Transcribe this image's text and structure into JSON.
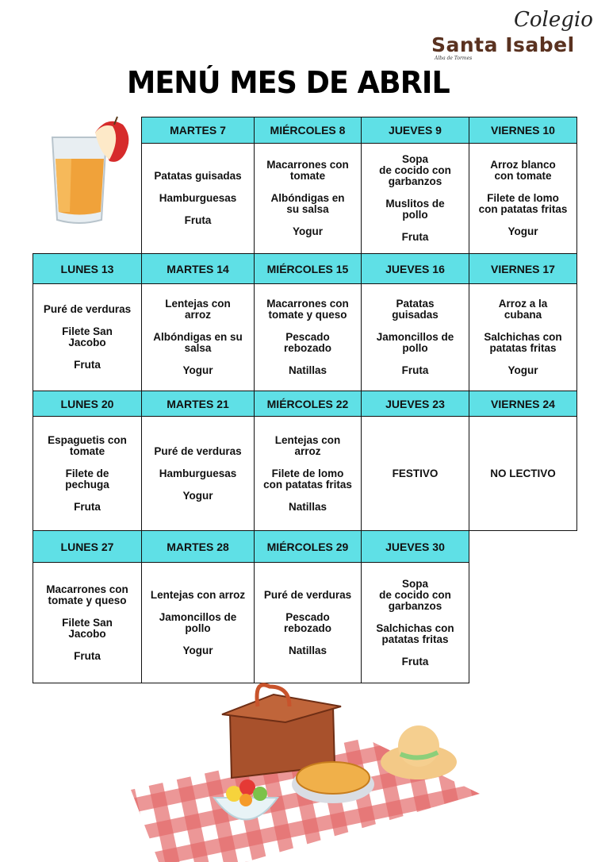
{
  "logo": {
    "colegio": "Colegio",
    "name": "Santa Isabel",
    "sub": "Alba de Tormes"
  },
  "title": "MENÚ MES DE ABRIL",
  "colors": {
    "header_bg": "#5fe0e6",
    "border": "#111111"
  },
  "weeks": [
    {
      "days": [
        null,
        {
          "header": "MARTES 7",
          "items": [
            "Patatas guisadas",
            "Hamburguesas",
            "Fruta"
          ]
        },
        {
          "header": "MIÉRCOLES 8",
          "items": [
            "Macarrones con\ntomate",
            "Albóndigas en\nsu salsa",
            "Yogur"
          ]
        },
        {
          "header": "JUEVES  9",
          "items": [
            "Sopa\nde cocido con\ngarbanzos",
            "Muslitos de\npollo",
            "Fruta"
          ]
        },
        {
          "header": "VIERNES 10",
          "items": [
            "Arroz blanco\ncon tomate",
            "Filete de lomo\ncon patatas fritas",
            "Yogur"
          ]
        }
      ]
    },
    {
      "days": [
        {
          "header": "LUNES 13",
          "items": [
            "Puré de verduras",
            "Filete San\nJacobo",
            "Fruta"
          ]
        },
        {
          "header": "MARTES 14",
          "items": [
            "Lentejas con\narroz",
            "Albóndigas en su\nsalsa",
            "Yogur"
          ]
        },
        {
          "header": "MIÉRCOLES 15",
          "items": [
            "Macarrones con\ntomate y queso",
            "Pescado\nrebozado",
            "Natillas"
          ]
        },
        {
          "header": "JUEVES 16",
          "items": [
            "Patatas\nguisadas",
            "Jamoncillos de\npollo",
            "Fruta"
          ]
        },
        {
          "header": "VIERNES 17",
          "items": [
            "Arroz a la\ncubana",
            "Salchichas con\npatatas fritas",
            "Yogur"
          ]
        }
      ]
    },
    {
      "days": [
        {
          "header": "LUNES 20",
          "items": [
            "Espaguetis con\ntomate",
            "Filete de\npechuga",
            "Fruta"
          ]
        },
        {
          "header": "MARTES 21",
          "items": [
            "Puré de verduras",
            "Hamburguesas",
            "Yogur"
          ]
        },
        {
          "header": "MIÉRCOLES 22",
          "items": [
            "Lentejas con\narroz",
            "Filete de lomo\ncon patatas fritas",
            "Natillas"
          ]
        },
        {
          "header": "JUEVES 23",
          "items": [
            "FESTIVO"
          ]
        },
        {
          "header": "VIERNES 24",
          "items": [
            "NO LECTIVO"
          ]
        }
      ]
    },
    {
      "days": [
        {
          "header": "LUNES  27",
          "items": [
            "Macarrones con\ntomate y queso",
            "Filete San\nJacobo",
            "Fruta"
          ]
        },
        {
          "header": "MARTES 28",
          "items": [
            "Lentejas con arroz",
            "Jamoncillos de\npollo",
            "Yogur"
          ]
        },
        {
          "header": "MIÉRCOLES 29",
          "items": [
            "Puré de verduras",
            "Pescado\nrebozado",
            "Natillas"
          ]
        },
        {
          "header": "JUEVES 30",
          "items": [
            "Sopa\nde cocido con\ngarbanzos",
            "Salchichas con\npatatas fritas",
            "Fruta"
          ]
        },
        null
      ]
    }
  ]
}
